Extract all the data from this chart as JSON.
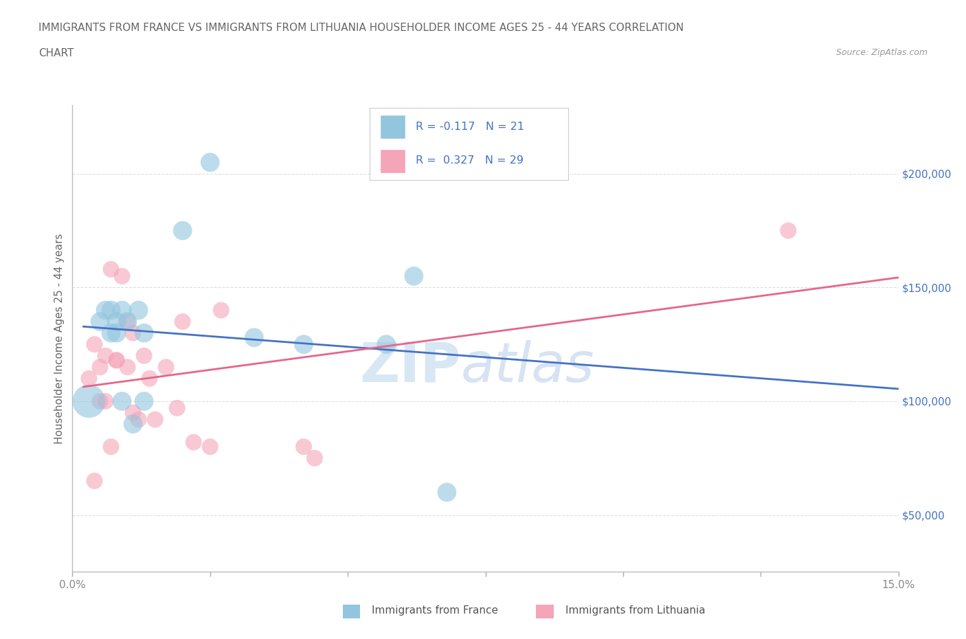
{
  "title_line1": "IMMIGRANTS FROM FRANCE VS IMMIGRANTS FROM LITHUANIA HOUSEHOLDER INCOME AGES 25 - 44 YEARS CORRELATION",
  "title_line2": "CHART",
  "source": "Source: ZipAtlas.com",
  "ylabel": "Householder Income Ages 25 - 44 years",
  "xlim": [
    0.0,
    0.15
  ],
  "ylim": [
    25000,
    230000
  ],
  "yticks": [
    50000,
    100000,
    150000,
    200000
  ],
  "ytick_labels": [
    "$50,000",
    "$100,000",
    "$150,000",
    "$200,000"
  ],
  "xticks": [
    0.0,
    0.025,
    0.05,
    0.075,
    0.1,
    0.125,
    0.15
  ],
  "xtick_labels": [
    "0.0%",
    "",
    "",
    "",
    "",
    "",
    "15.0%"
  ],
  "france_R": -0.117,
  "france_N": 21,
  "lithuania_R": 0.327,
  "lithuania_N": 29,
  "france_color": "#92c5de",
  "lithuania_color": "#f4a5b8",
  "france_line_color": "#4472c4",
  "lithuania_line_color": "#e8648a",
  "france_x": [
    0.003,
    0.005,
    0.006,
    0.007,
    0.007,
    0.008,
    0.008,
    0.009,
    0.009,
    0.01,
    0.011,
    0.012,
    0.013,
    0.013,
    0.02,
    0.025,
    0.033,
    0.042,
    0.057,
    0.062,
    0.068
  ],
  "france_y": [
    100000,
    135000,
    140000,
    130000,
    140000,
    135000,
    130000,
    140000,
    100000,
    135000,
    90000,
    140000,
    100000,
    130000,
    175000,
    205000,
    128000,
    125000,
    125000,
    155000,
    60000
  ],
  "lithuania_x": [
    0.003,
    0.004,
    0.004,
    0.005,
    0.005,
    0.006,
    0.006,
    0.007,
    0.007,
    0.008,
    0.008,
    0.009,
    0.01,
    0.01,
    0.011,
    0.011,
    0.012,
    0.013,
    0.014,
    0.015,
    0.017,
    0.019,
    0.02,
    0.022,
    0.025,
    0.027,
    0.042,
    0.044,
    0.13
  ],
  "lithuania_y": [
    110000,
    125000,
    65000,
    115000,
    100000,
    120000,
    100000,
    80000,
    158000,
    118000,
    118000,
    155000,
    135000,
    115000,
    130000,
    95000,
    92000,
    120000,
    110000,
    92000,
    115000,
    97000,
    135000,
    82000,
    80000,
    140000,
    80000,
    75000,
    175000
  ],
  "watermark_zip": "ZIP",
  "watermark_atlas": "atlas",
  "background_color": "#ffffff",
  "grid_color": "#dddddd",
  "title_color": "#666666",
  "axis_label_color": "#666666",
  "tick_color_y": "#4472c4",
  "tick_color_x": "#888888",
  "marker_size_france": 400,
  "marker_size_lithuania": 300,
  "marker_size_large": 1200,
  "legend_france_label": "R = -0.117   N = 21",
  "legend_lithuania_label": "R =  0.327   N = 29",
  "bottom_legend_france": "Immigrants from France",
  "bottom_legend_lithuania": "Immigrants from Lithuania"
}
